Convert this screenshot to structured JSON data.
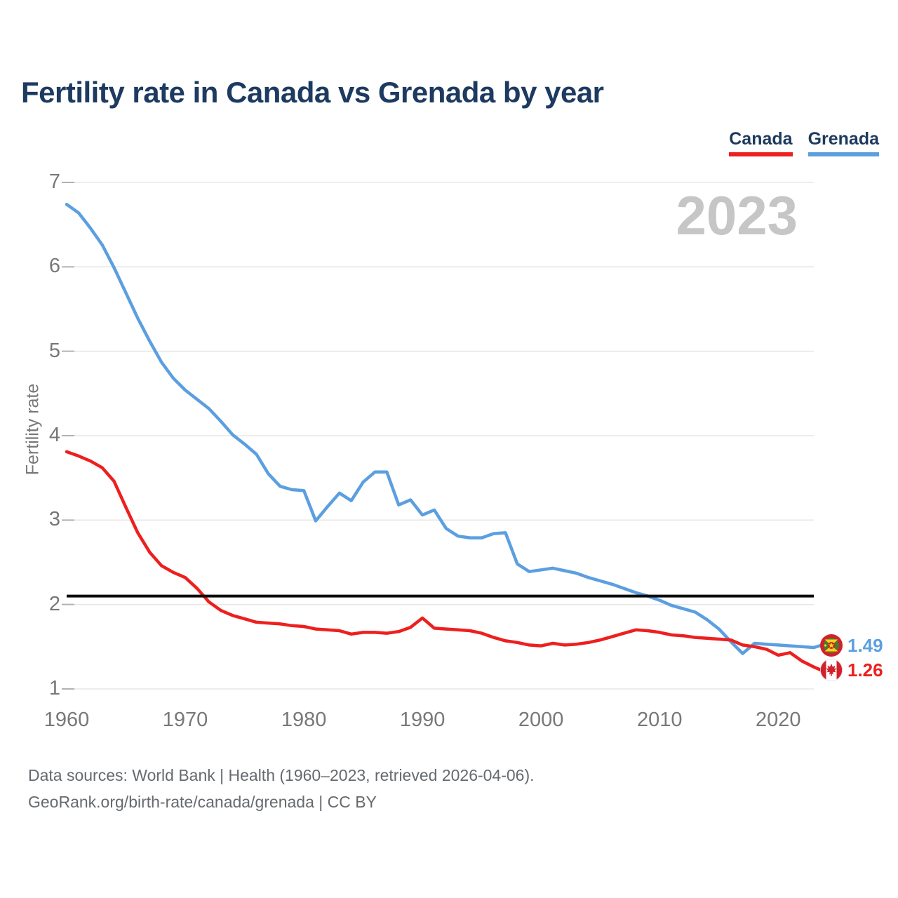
{
  "title": "Fertility rate in Canada vs Grenada by year",
  "legend": [
    {
      "label": "Canada",
      "color": "#ed1f1f"
    },
    {
      "label": "Grenada",
      "color": "#5b9fe0"
    }
  ],
  "watermark": "2023",
  "y_axis": {
    "label": "Fertility rate",
    "ticks": [
      7,
      6,
      5,
      4,
      3,
      2,
      1
    ]
  },
  "x_axis": {
    "ticks": [
      1960,
      1970,
      1980,
      1990,
      2000,
      2010,
      2020
    ]
  },
  "end_labels": [
    {
      "series": "Grenada",
      "value": "1.49",
      "flag": "grenada-flag"
    },
    {
      "series": "Canada",
      "value": "1.26",
      "flag": "canada-flag"
    }
  ],
  "footer": {
    "line1": "Data sources: World Bank | Health (1960–2023, retrieved 2026-04-06).",
    "line2": "GeoRank.org/birth-rate/canada/grenada | CC BY"
  },
  "chart_data": {
    "type": "line",
    "title": "Fertility rate in Canada vs Grenada by year",
    "xlabel": "",
    "ylabel": "Fertility rate",
    "ylim": [
      1,
      7
    ],
    "xlim": [
      1960,
      2023
    ],
    "grid": "horizontal",
    "legend_position": "top-right",
    "reference_line": {
      "value": 2.1,
      "color": "#0a0a0a"
    },
    "years": [
      1960,
      1961,
      1962,
      1963,
      1964,
      1965,
      1966,
      1967,
      1968,
      1969,
      1970,
      1971,
      1972,
      1973,
      1974,
      1975,
      1976,
      1977,
      1978,
      1979,
      1980,
      1981,
      1982,
      1983,
      1984,
      1985,
      1986,
      1987,
      1988,
      1989,
      1990,
      1991,
      1992,
      1993,
      1994,
      1995,
      1996,
      1997,
      1998,
      1999,
      2000,
      2001,
      2002,
      2003,
      2004,
      2005,
      2006,
      2007,
      2008,
      2009,
      2010,
      2011,
      2012,
      2013,
      2014,
      2015,
      2016,
      2017,
      2018,
      2019,
      2020,
      2021,
      2022,
      2023
    ],
    "series": [
      {
        "name": "Grenada",
        "color": "#5b9fe0",
        "final_value": 1.49,
        "values": [
          6.74,
          6.64,
          6.46,
          6.26,
          5.99,
          5.69,
          5.39,
          5.12,
          4.87,
          4.68,
          4.54,
          4.43,
          4.32,
          4.17,
          4.01,
          3.9,
          3.78,
          3.55,
          3.4,
          3.36,
          3.35,
          2.99,
          3.16,
          3.32,
          3.23,
          3.45,
          3.57,
          3.57,
          3.18,
          3.24,
          3.06,
          3.12,
          2.9,
          2.81,
          2.79,
          2.79,
          2.84,
          2.85,
          2.48,
          2.39,
          2.41,
          2.43,
          2.4,
          2.37,
          2.32,
          2.28,
          2.24,
          2.19,
          2.14,
          2.1,
          2.05,
          1.99,
          1.95,
          1.91,
          1.82,
          1.71,
          1.56,
          1.42,
          1.54,
          1.53,
          1.52,
          1.51,
          1.5,
          1.49
        ]
      },
      {
        "name": "Canada",
        "color": "#ed1f1f",
        "final_value": 1.26,
        "values": [
          3.81,
          3.76,
          3.7,
          3.62,
          3.46,
          3.15,
          2.85,
          2.62,
          2.46,
          2.38,
          2.32,
          2.19,
          2.03,
          1.93,
          1.87,
          1.83,
          1.79,
          1.78,
          1.77,
          1.75,
          1.74,
          1.71,
          1.7,
          1.69,
          1.65,
          1.67,
          1.67,
          1.66,
          1.68,
          1.73,
          1.84,
          1.72,
          1.71,
          1.7,
          1.69,
          1.66,
          1.61,
          1.57,
          1.55,
          1.52,
          1.51,
          1.54,
          1.52,
          1.53,
          1.55,
          1.58,
          1.62,
          1.66,
          1.7,
          1.69,
          1.67,
          1.64,
          1.63,
          1.61,
          1.6,
          1.59,
          1.58,
          1.52,
          1.5,
          1.47,
          1.4,
          1.43,
          1.33,
          1.26
        ]
      }
    ]
  }
}
